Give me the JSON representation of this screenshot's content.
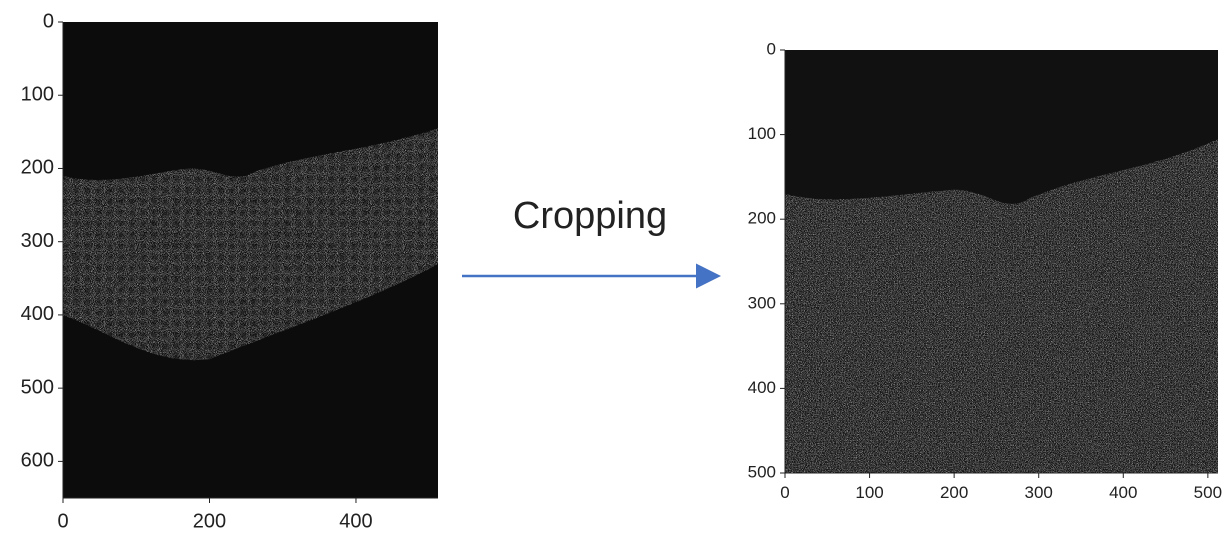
{
  "left_plot": {
    "xlim": [
      0,
      512
    ],
    "ylim": [
      0,
      650
    ],
    "xticks": [
      0,
      200,
      400
    ],
    "yticks": [
      0,
      100,
      200,
      300,
      400,
      500,
      600
    ]
  },
  "arrow_label": "Cropping",
  "right_plot": {
    "xlim": [
      0,
      512
    ],
    "ylim": [
      0,
      500
    ],
    "xticks": [
      0,
      100,
      200,
      300,
      400,
      500
    ],
    "yticks": [
      0,
      100,
      200,
      300,
      400,
      500
    ]
  }
}
